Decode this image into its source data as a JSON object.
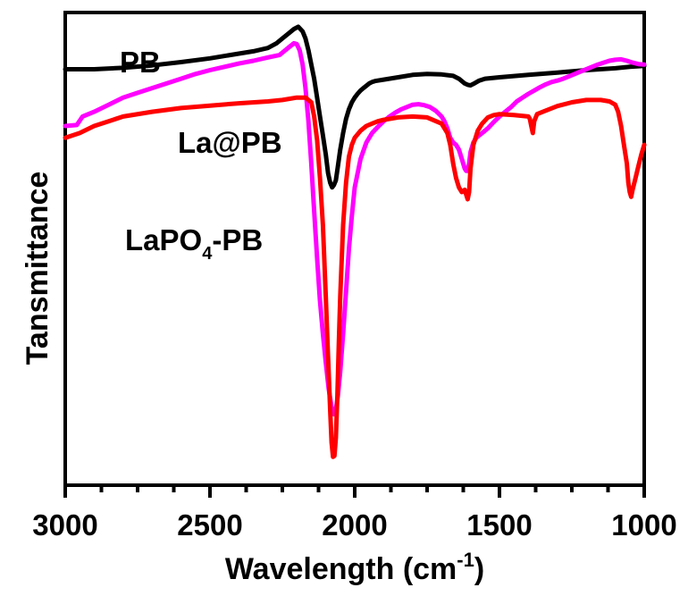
{
  "chart_data": {
    "type": "line",
    "xlabel": "Wavelength (cm",
    "xlabel_sup": "-1",
    "xlabel_close": ")",
    "ylabel": "Tansmittance",
    "x_reversed": true,
    "xlim": [
      3000,
      1000
    ],
    "ylim": [
      0,
      100
    ],
    "y_ticks_labeled": false,
    "x_ticks": [
      3000,
      2500,
      2000,
      1500,
      1000
    ],
    "x_tick_labels": [
      "3000",
      "2500",
      "2000",
      "1500",
      "1000"
    ],
    "legend": "inline labels",
    "grid": false,
    "series": [
      {
        "name": "PB",
        "label_main": "PB",
        "label_sub": "",
        "label_tail": "",
        "color": "#000000",
        "x": [
          3000,
          2900,
          2800,
          2700,
          2600,
          2500,
          2400,
          2350,
          2300,
          2270,
          2250,
          2230,
          2210,
          2195,
          2180,
          2170,
          2160,
          2150,
          2140,
          2130,
          2120,
          2110,
          2100,
          2092,
          2085,
          2078,
          2072,
          2065,
          2058,
          2050,
          2040,
          2030,
          2020,
          2010,
          2000,
          1990,
          1980,
          1970,
          1960,
          1950,
          1940,
          1930,
          1900,
          1850,
          1800,
          1750,
          1700,
          1660,
          1640,
          1620,
          1610,
          1600,
          1590,
          1570,
          1550,
          1500,
          1400,
          1300,
          1200,
          1100,
          1050,
          1000
        ],
        "y": [
          88.0,
          88.0,
          88.3,
          88.8,
          89.5,
          90.3,
          91.3,
          91.8,
          92.5,
          93.5,
          94.5,
          95.5,
          96.5,
          97.0,
          96.0,
          94.5,
          92.0,
          89.0,
          86.0,
          82.0,
          78.0,
          74.0,
          70.0,
          66.0,
          64.0,
          63.0,
          63.5,
          64.5,
          67.5,
          71.0,
          74.5,
          77.5,
          79.5,
          81.0,
          82.0,
          82.8,
          83.5,
          84.0,
          84.5,
          85.0,
          85.3,
          85.5,
          85.8,
          86.3,
          86.8,
          87.0,
          86.9,
          86.6,
          86.0,
          85.0,
          84.7,
          84.6,
          84.9,
          85.6,
          86.0,
          86.3,
          86.8,
          87.3,
          87.8,
          88.2,
          88.5,
          88.7
        ]
      },
      {
        "name": "La@PB",
        "label_main": "La@PB",
        "label_sub": "",
        "label_tail": "",
        "color": "#ff00ff",
        "x": [
          3000,
          2960,
          2940,
          2900,
          2850,
          2800,
          2750,
          2700,
          2650,
          2600,
          2550,
          2500,
          2450,
          2400,
          2350,
          2300,
          2260,
          2240,
          2220,
          2210,
          2200,
          2190,
          2180,
          2170,
          2160,
          2150,
          2140,
          2130,
          2120,
          2110,
          2100,
          2090,
          2080,
          2072,
          2065,
          2058,
          2050,
          2040,
          2030,
          2020,
          2010,
          2000,
          1980,
          1960,
          1940,
          1920,
          1900,
          1880,
          1860,
          1840,
          1820,
          1800,
          1780,
          1760,
          1740,
          1720,
          1700,
          1690,
          1680,
          1670,
          1660,
          1650,
          1640,
          1630,
          1620,
          1615,
          1610,
          1605,
          1600,
          1590,
          1580,
          1570,
          1560,
          1540,
          1520,
          1500,
          1480,
          1460,
          1440,
          1420,
          1400,
          1380,
          1360,
          1340,
          1320,
          1300,
          1280,
          1260,
          1240,
          1220,
          1200,
          1180,
          1160,
          1140,
          1120,
          1100,
          1080,
          1060,
          1040,
          1020,
          1000
        ],
        "y": [
          76.0,
          76.2,
          78.0,
          79.0,
          80.5,
          82.0,
          83.0,
          84.0,
          85.0,
          86.0,
          87.0,
          87.8,
          88.5,
          89.2,
          89.8,
          90.5,
          91.0,
          92.0,
          93.0,
          93.5,
          93.3,
          92.0,
          89.0,
          84.0,
          77.0,
          68.0,
          58.0,
          48.0,
          39.0,
          32.0,
          26.0,
          20.5,
          16.5,
          15.0,
          16.0,
          19.0,
          24.0,
          32.0,
          41.0,
          50.0,
          57.0,
          63.0,
          69.0,
          72.5,
          74.5,
          75.8,
          77.0,
          78.0,
          78.8,
          79.5,
          80.0,
          80.5,
          80.6,
          80.4,
          80.0,
          79.2,
          78.0,
          77.0,
          75.5,
          73.5,
          72.5,
          72.0,
          71.0,
          69.0,
          67.0,
          66.5,
          66.5,
          68.0,
          70.5,
          72.5,
          73.5,
          74.0,
          74.5,
          75.5,
          76.8,
          78.0,
          79.0,
          80.0,
          81.2,
          82.0,
          82.8,
          83.5,
          84.2,
          84.8,
          85.3,
          85.6,
          86.0,
          86.5,
          87.0,
          87.5,
          88.0,
          88.5,
          89.0,
          89.4,
          89.8,
          90.0,
          90.1,
          89.8,
          89.4,
          89.1,
          89.0
        ]
      },
      {
        "name": "LaPO4-PB",
        "label_main": "LaPO",
        "label_sub": "4",
        "label_tail": "-PB",
        "color": "#ff0000",
        "x": [
          3000,
          2950,
          2900,
          2850,
          2800,
          2700,
          2600,
          2500,
          2400,
          2300,
          2250,
          2200,
          2170,
          2150,
          2140,
          2130,
          2120,
          2110,
          2100,
          2092,
          2085,
          2080,
          2075,
          2070,
          2065,
          2060,
          2055,
          2050,
          2040,
          2030,
          2020,
          2010,
          2000,
          1980,
          1960,
          1940,
          1920,
          1900,
          1850,
          1800,
          1750,
          1700,
          1680,
          1670,
          1660,
          1650,
          1640,
          1630,
          1620,
          1615,
          1610,
          1605,
          1600,
          1590,
          1575,
          1560,
          1540,
          1520,
          1500,
          1450,
          1400,
          1395,
          1390,
          1385,
          1380,
          1370,
          1350,
          1300,
          1250,
          1200,
          1150,
          1120,
          1100,
          1090,
          1080,
          1070,
          1060,
          1055,
          1050,
          1045,
          1040,
          1030,
          1020,
          1010,
          1000
        ],
        "y": [
          73.5,
          74.5,
          76.0,
          77.0,
          78.0,
          79.0,
          79.8,
          80.3,
          80.8,
          81.2,
          81.5,
          82.0,
          82.0,
          81.0,
          78.0,
          73.0,
          65.0,
          55.0,
          40.0,
          27.0,
          16.0,
          9.0,
          6.0,
          6.2,
          10.0,
          19.0,
          30.0,
          40.0,
          55.0,
          64.0,
          69.5,
          72.0,
          73.5,
          75.0,
          76.0,
          76.5,
          77.0,
          77.3,
          77.8,
          78.0,
          77.8,
          76.5,
          74.5,
          72.0,
          68.0,
          65.0,
          63.0,
          62.0,
          62.5,
          61.5,
          60.5,
          62.0,
          67.0,
          72.0,
          75.0,
          76.5,
          77.8,
          78.3,
          78.5,
          78.3,
          78.0,
          77.5,
          76.0,
          74.5,
          77.0,
          78.5,
          79.0,
          80.2,
          81.0,
          81.5,
          81.5,
          81.2,
          80.5,
          79.0,
          76.0,
          72.0,
          68.0,
          64.0,
          62.0,
          61.0,
          62.5,
          65.0,
          67.5,
          70.0,
          72.0
        ]
      }
    ],
    "series_label_positions": "inline"
  }
}
